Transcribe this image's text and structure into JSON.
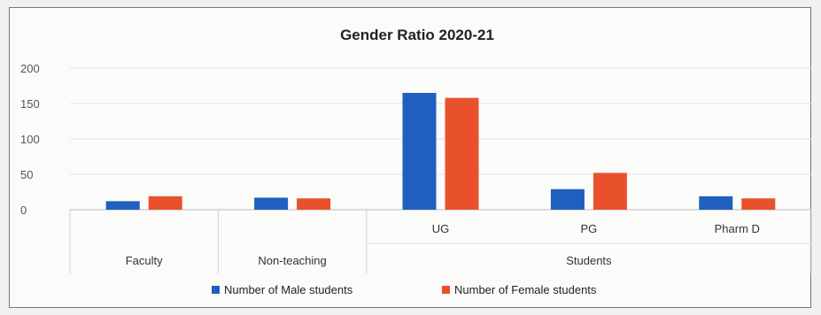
{
  "chart_data": {
    "type": "bar",
    "title": "Gender Ratio 2020-21",
    "categories": [
      "Faculty",
      "Non-teaching",
      "UG",
      "PG",
      "Pharm D"
    ],
    "group_label": "Students",
    "series": [
      {
        "name": "Number of Male students",
        "color": "#1f5fbf",
        "values": [
          12,
          17,
          165,
          29,
          19
        ]
      },
      {
        "name": "Number of Female students",
        "color": "#e8512c",
        "values": [
          19,
          16,
          158,
          52,
          16
        ]
      }
    ],
    "ylim": [
      0,
      200
    ],
    "yticks": [
      0,
      50,
      100,
      150,
      200
    ],
    "grid": true,
    "legend": "bottom"
  }
}
